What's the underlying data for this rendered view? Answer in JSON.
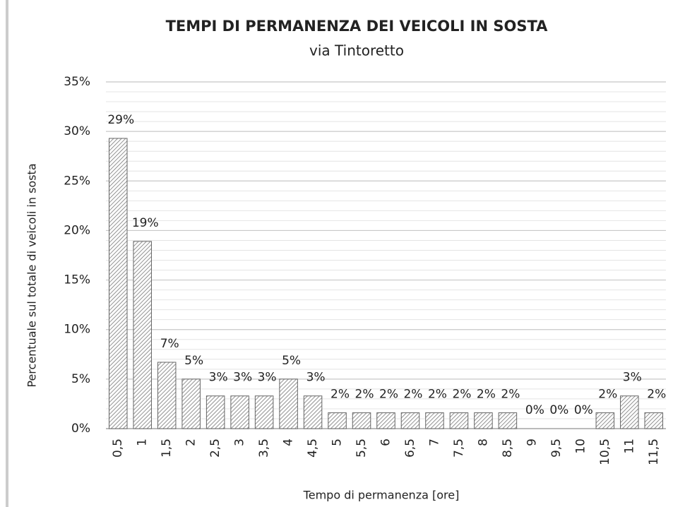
{
  "chart_data": {
    "type": "bar",
    "title": "TEMPI DI PERMANENZA DEI VEICOLI IN SOSTA",
    "subtitle": "via Tintoretto",
    "x_label": "Tempo di permanenza [ore]",
    "y_label": "Percentuale sul totale di veicoli in sosta",
    "categories": [
      "0,5",
      "1",
      "1,5",
      "2",
      "2,5",
      "3",
      "3,5",
      "4",
      "4,5",
      "5",
      "5,5",
      "6",
      "6,5",
      "7",
      "7,5",
      "8",
      "8,5",
      "9",
      "9,5",
      "10",
      "10,5",
      "11",
      "11,5"
    ],
    "values": [
      29.3,
      18.9,
      6.7,
      5.0,
      3.3,
      3.3,
      3.3,
      5.0,
      3.3,
      1.6,
      1.6,
      1.6,
      1.6,
      1.6,
      1.6,
      1.6,
      1.6,
      0,
      0,
      0,
      1.6,
      3.3,
      1.6
    ],
    "value_labels": [
      "29%",
      "19%",
      "7%",
      "5%",
      "3%",
      "3%",
      "3%",
      "5%",
      "3%",
      "2%",
      "2%",
      "2%",
      "2%",
      "2%",
      "2%",
      "2%",
      "2%",
      "0%",
      "0%",
      "0%",
      "2%",
      "3%",
      "2%"
    ],
    "color": "#666666",
    "ylim": [
      0,
      35
    ],
    "yticks": [
      {
        "value": 0,
        "label": "0%"
      },
      {
        "value": 5,
        "label": "5%"
      },
      {
        "value": 10,
        "label": "10%"
      },
      {
        "value": 15,
        "label": "15%"
      },
      {
        "value": 20,
        "label": "20%"
      },
      {
        "value": 25,
        "label": "25%"
      },
      {
        "value": 30,
        "label": "30%"
      },
      {
        "value": 35,
        "label": "35%"
      }
    ],
    "grid": true,
    "minor_grid": true
  }
}
